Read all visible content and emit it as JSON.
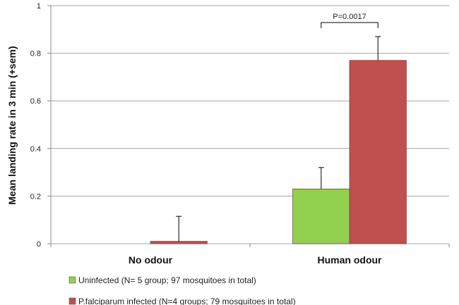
{
  "chart_data": {
    "type": "bar",
    "ylabel": "Mean landing rate in 3 min (+sem)",
    "ylim": [
      0,
      1
    ],
    "yticks": [
      "0",
      "0.2",
      "0.4",
      "0.6",
      "0.8",
      "1"
    ],
    "ytick_values": [
      0,
      0.2,
      0.4,
      0.6,
      0.8,
      1
    ],
    "grid": true,
    "legend_position": "bottom",
    "categories": [
      "No odour",
      "Human odour"
    ],
    "series": [
      {
        "name": "Uninfected (N= 5 group; 97 mosquitoes in total)",
        "color": "#92d050",
        "values": [
          0,
          0.23
        ],
        "errors": [
          0,
          0.09
        ]
      },
      {
        "name": "P.falciparum infected (N=4 groups; 79 mosquitoes in total)",
        "color": "#c0504d",
        "values": [
          0.01,
          0.77
        ],
        "errors": [
          0.105,
          0.1
        ]
      }
    ],
    "annotations": [
      {
        "text": "P=0.0017",
        "category": "Human odour"
      }
    ]
  }
}
